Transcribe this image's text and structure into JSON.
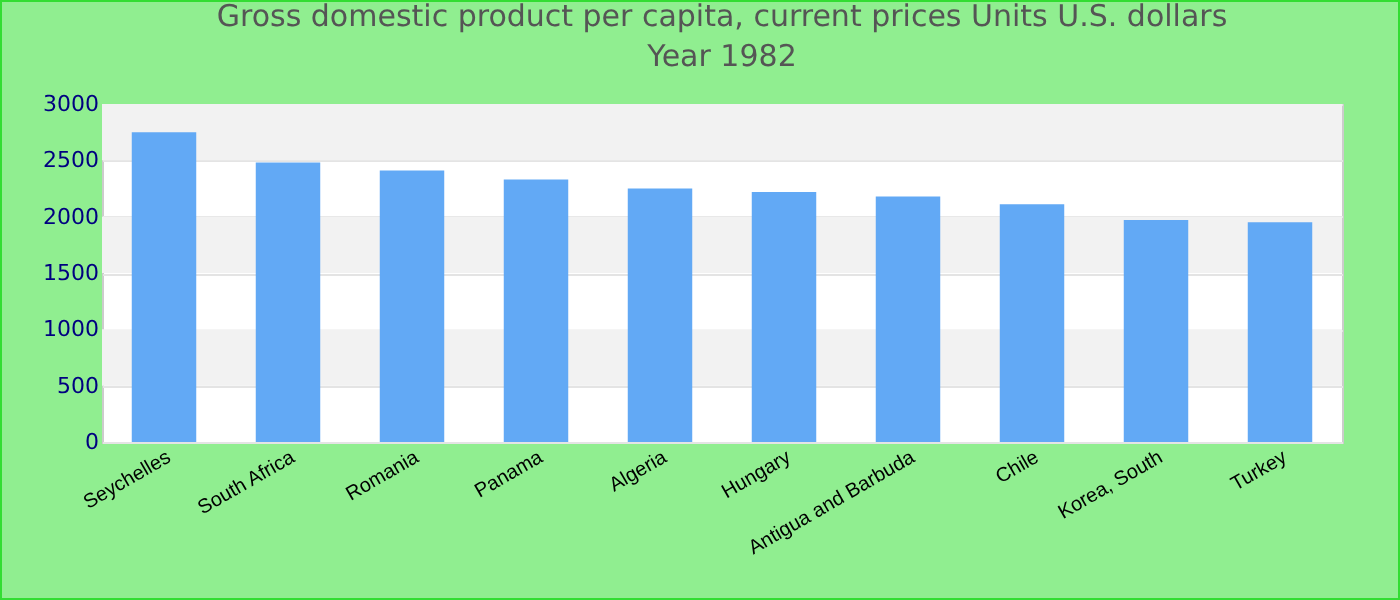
{
  "chart_data": {
    "type": "bar",
    "title": "Gross domestic product per capita, current prices Units U.S. dollars",
    "subtitle": "Year 1982",
    "categories": [
      "Seychelles",
      "South Africa",
      "Romania",
      "Panama",
      "Algeria",
      "Hungary",
      "Antigua and Barbuda",
      "Chile",
      "Korea, South",
      "Turkey"
    ],
    "values": [
      2750,
      2480,
      2410,
      2330,
      2250,
      2220,
      2180,
      2110,
      1970,
      1950
    ],
    "color": "#62a9f5",
    "ylim": [
      0,
      3000
    ],
    "yticks": [
      0,
      500,
      1000,
      1500,
      2000,
      2500,
      3000
    ],
    "grid": true
  }
}
